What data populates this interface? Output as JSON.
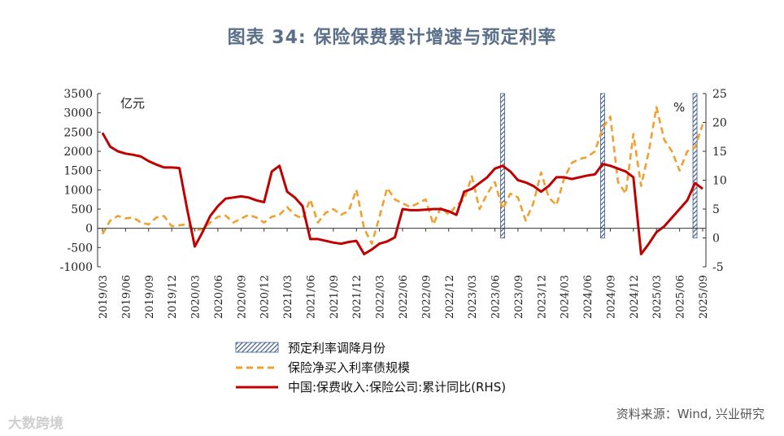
{
  "title": "图表 34: 保险保费累计增速与预定利率",
  "source": "资料来源：Wind, 兴业研究",
  "watermark": "大数跨境",
  "colors": {
    "title": "#5a6f8a",
    "premium": "#c00000",
    "bond": "#f0a030",
    "hatch": "#3f5b8a"
  },
  "chart_data": {
    "type": "line",
    "left_unit": "亿元",
    "right_unit": "%",
    "y_left": {
      "min": -1000,
      "max": 3500,
      "ticks": [
        -1000,
        -500,
        0,
        500,
        1000,
        1500,
        2000,
        2500,
        3000,
        3500
      ]
    },
    "y_right": {
      "min": -5,
      "max": 25,
      "ticks": [
        -5,
        0,
        5,
        10,
        15,
        20,
        25
      ]
    },
    "x_labels": [
      "2019/03",
      "2019/06",
      "2019/09",
      "2019/12",
      "2020/03",
      "2020/06",
      "2020/09",
      "2020/12",
      "2021/03",
      "2021/06",
      "2021/09",
      "2021/12",
      "2022/03",
      "2022/06",
      "2022/09",
      "2022/12",
      "2023/03",
      "2023/06",
      "2023/09",
      "2023/12",
      "2024/03",
      "2024/06",
      "2024/09",
      "2024/12",
      "2025/03",
      "2025/06",
      "2025/09"
    ],
    "legend": [
      {
        "key": "hatch",
        "label": "预定利率调降月份"
      },
      {
        "key": "bond",
        "label": "保险净买入利率债规模"
      },
      {
        "key": "premium",
        "label": "中国:保费收入:保险公司:累计同比(RHS)"
      }
    ],
    "rate_cut_months": [
      "2023/07",
      "2024/08",
      "2025/08"
    ],
    "series": [
      {
        "key": "bond",
        "axis": "left",
        "dashed": true,
        "values": [
          [
            "2019/03",
            -150
          ],
          [
            "2019/04",
            200
          ],
          [
            "2019/05",
            320
          ],
          [
            "2019/06",
            260
          ],
          [
            "2019/07",
            280
          ],
          [
            "2019/08",
            150
          ],
          [
            "2019/09",
            100
          ],
          [
            "2019/10",
            280
          ],
          [
            "2019/11",
            320
          ],
          [
            "2019/12",
            50
          ],
          [
            "2020/01",
            80
          ],
          [
            "2020/02",
            100
          ],
          [
            "2020/03",
            -50
          ],
          [
            "2020/04",
            -20
          ],
          [
            "2020/05",
            150
          ],
          [
            "2020/06",
            300
          ],
          [
            "2020/07",
            330
          ],
          [
            "2020/08",
            150
          ],
          [
            "2020/09",
            250
          ],
          [
            "2020/10",
            350
          ],
          [
            "2020/11",
            280
          ],
          [
            "2020/12",
            150
          ],
          [
            "2021/01",
            300
          ],
          [
            "2021/02",
            350
          ],
          [
            "2021/03",
            550
          ],
          [
            "2021/04",
            350
          ],
          [
            "2021/05",
            250
          ],
          [
            "2021/06",
            750
          ],
          [
            "2021/07",
            150
          ],
          [
            "2021/08",
            400
          ],
          [
            "2021/09",
            500
          ],
          [
            "2021/10",
            350
          ],
          [
            "2021/11",
            450
          ],
          [
            "2021/12",
            1000
          ],
          [
            "2022/01",
            0
          ],
          [
            "2022/02",
            -400
          ],
          [
            "2022/03",
            300
          ],
          [
            "2022/04",
            1050
          ],
          [
            "2022/05",
            750
          ],
          [
            "2022/06",
            650
          ],
          [
            "2022/07",
            550
          ],
          [
            "2022/08",
            650
          ],
          [
            "2022/09",
            750
          ],
          [
            "2022/10",
            100
          ],
          [
            "2022/11",
            550
          ],
          [
            "2022/12",
            350
          ],
          [
            "2023/01",
            600
          ],
          [
            "2023/02",
            750
          ],
          [
            "2023/03",
            1350
          ],
          [
            "2023/04",
            500
          ],
          [
            "2023/05",
            900
          ],
          [
            "2023/06",
            1200
          ],
          [
            "2023/07",
            500
          ],
          [
            "2023/08",
            900
          ],
          [
            "2023/09",
            800
          ],
          [
            "2023/10",
            200
          ],
          [
            "2023/11",
            650
          ],
          [
            "2023/12",
            1450
          ],
          [
            "2024/01",
            800
          ],
          [
            "2024/02",
            600
          ],
          [
            "2024/03",
            1300
          ],
          [
            "2024/04",
            1700
          ],
          [
            "2024/05",
            1800
          ],
          [
            "2024/06",
            1850
          ],
          [
            "2024/07",
            2000
          ],
          [
            "2024/08",
            2600
          ],
          [
            "2024/09",
            2900
          ],
          [
            "2024/10",
            1200
          ],
          [
            "2024/11",
            900
          ],
          [
            "2024/12",
            2450
          ],
          [
            "2025/01",
            1100
          ],
          [
            "2025/02",
            2000
          ],
          [
            "2025/03",
            3150
          ],
          [
            "2025/04",
            2300
          ],
          [
            "2025/05",
            2000
          ],
          [
            "2025/06",
            1500
          ],
          [
            "2025/07",
            2000
          ],
          [
            "2025/08",
            2100
          ],
          [
            "2025/09",
            2700
          ]
        ]
      },
      {
        "key": "premium",
        "axis": "right",
        "dashed": false,
        "values": [
          [
            "2019/03",
            18.2
          ],
          [
            "2019/04",
            15.8
          ],
          [
            "2019/05",
            15.0
          ],
          [
            "2019/06",
            14.6
          ],
          [
            "2019/07",
            14.4
          ],
          [
            "2019/08",
            14.1
          ],
          [
            "2019/09",
            13.3
          ],
          [
            "2019/10",
            12.7
          ],
          [
            "2019/11",
            12.2
          ],
          [
            "2019/12",
            12.2
          ],
          [
            "2020/01",
            12.1
          ],
          [
            "2020/02",
            5.0
          ],
          [
            "2020/03",
            -1.5
          ],
          [
            "2020/04",
            1.0
          ],
          [
            "2020/05",
            3.8
          ],
          [
            "2020/06",
            5.5
          ],
          [
            "2020/07",
            6.8
          ],
          [
            "2020/08",
            7.0
          ],
          [
            "2020/09",
            7.2
          ],
          [
            "2020/10",
            7.0
          ],
          [
            "2020/11",
            6.5
          ],
          [
            "2020/12",
            6.2
          ],
          [
            "2021/01",
            11.5
          ],
          [
            "2021/02",
            12.5
          ],
          [
            "2021/03",
            8.0
          ],
          [
            "2021/04",
            7.0
          ],
          [
            "2021/05",
            5.5
          ],
          [
            "2021/06",
            -0.2
          ],
          [
            "2021/07",
            -0.2
          ],
          [
            "2021/08",
            -0.5
          ],
          [
            "2021/09",
            -0.8
          ],
          [
            "2021/10",
            -1.0
          ],
          [
            "2021/11",
            -0.7
          ],
          [
            "2021/12",
            -0.5
          ],
          [
            "2022/01",
            -2.8
          ],
          [
            "2022/02",
            -2.0
          ],
          [
            "2022/03",
            -1.0
          ],
          [
            "2022/04",
            -0.6
          ],
          [
            "2022/05",
            0.1
          ],
          [
            "2022/06",
            5.0
          ],
          [
            "2022/07",
            4.8
          ],
          [
            "2022/08",
            4.8
          ],
          [
            "2022/09",
            4.9
          ],
          [
            "2022/10",
            5.0
          ],
          [
            "2022/11",
            5.0
          ],
          [
            "2022/12",
            4.6
          ],
          [
            "2023/01",
            4.0
          ],
          [
            "2023/02",
            8.0
          ],
          [
            "2023/03",
            8.5
          ],
          [
            "2023/04",
            9.5
          ],
          [
            "2023/05",
            10.5
          ],
          [
            "2023/06",
            12.0
          ],
          [
            "2023/07",
            12.5
          ],
          [
            "2023/08",
            11.5
          ],
          [
            "2023/09",
            10.0
          ],
          [
            "2023/10",
            9.6
          ],
          [
            "2023/11",
            9.0
          ],
          [
            "2023/12",
            8.0
          ],
          [
            "2024/01",
            9.0
          ],
          [
            "2024/02",
            10.5
          ],
          [
            "2024/03",
            10.5
          ],
          [
            "2024/04",
            10.2
          ],
          [
            "2024/05",
            10.5
          ],
          [
            "2024/06",
            10.8
          ],
          [
            "2024/07",
            11.0
          ],
          [
            "2024/08",
            12.8
          ],
          [
            "2024/09",
            12.5
          ],
          [
            "2024/10",
            12.0
          ],
          [
            "2024/11",
            11.5
          ],
          [
            "2024/12",
            10.5
          ],
          [
            "2025/01",
            -2.8
          ],
          [
            "2025/02",
            -1.0
          ],
          [
            "2025/03",
            1.0
          ],
          [
            "2025/04",
            2.0
          ],
          [
            "2025/05",
            3.5
          ],
          [
            "2025/06",
            5.0
          ],
          [
            "2025/07",
            6.5
          ],
          [
            "2025/08",
            9.5
          ],
          [
            "2025/09",
            8.5
          ]
        ]
      }
    ]
  }
}
